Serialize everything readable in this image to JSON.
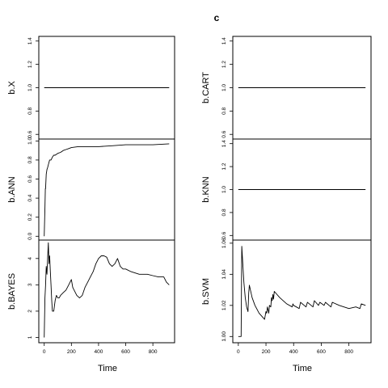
{
  "figure": {
    "title": "c"
  },
  "chart_data": [
    {
      "type": "line",
      "ylabel": "b.X",
      "xlabel": "",
      "xlim": [
        -40,
        960
      ],
      "ylim": [
        0.56,
        1.44
      ],
      "yticks": [
        0.6,
        0.8,
        1.0,
        1.2,
        1.4
      ],
      "ytick_labels": [
        "0.6",
        "0.8",
        "1.0",
        "1.2",
        "1.4"
      ],
      "xticks": [],
      "xtick_labels": [],
      "x": [
        0,
        920
      ],
      "y": [
        1.0,
        1.0
      ]
    },
    {
      "type": "line",
      "ylabel": "b.ANN",
      "xlabel": "",
      "xlim": [
        -40,
        960
      ],
      "ylim": [
        -0.04,
        1.02
      ],
      "yticks": [
        0.0,
        0.2,
        0.4,
        0.6,
        0.8,
        1.0
      ],
      "ytick_labels": [
        "0.0",
        "0.2",
        "0.4",
        "0.6",
        "0.8",
        "1.0"
      ],
      "xticks": [],
      "xtick_labels": [],
      "x": [
        0,
        5,
        8,
        10,
        15,
        20,
        25,
        30,
        40,
        50,
        60,
        70,
        80,
        100,
        120,
        140,
        160,
        180,
        200,
        250,
        300,
        400,
        500,
        600,
        700,
        800,
        920
      ],
      "y": [
        0.0,
        0.3,
        0.5,
        0.5,
        0.65,
        0.7,
        0.72,
        0.75,
        0.8,
        0.8,
        0.83,
        0.85,
        0.85,
        0.87,
        0.88,
        0.9,
        0.91,
        0.92,
        0.93,
        0.94,
        0.94,
        0.94,
        0.95,
        0.96,
        0.96,
        0.96,
        0.97
      ]
    },
    {
      "type": "line",
      "ylabel": "b.BAYES",
      "xlabel": "Time",
      "xlim": [
        -40,
        960
      ],
      "ylim": [
        0.8,
        4.7
      ],
      "yticks": [
        1,
        2,
        3,
        4
      ],
      "ytick_labels": [
        "1",
        "2",
        "3",
        "4"
      ],
      "xticks": [
        0,
        200,
        400,
        600,
        800
      ],
      "xtick_labels": [
        "0",
        "200",
        "400",
        "600",
        "800"
      ],
      "x": [
        0,
        5,
        10,
        15,
        20,
        25,
        30,
        35,
        40,
        45,
        50,
        55,
        60,
        70,
        80,
        90,
        100,
        110,
        120,
        140,
        160,
        180,
        200,
        210,
        220,
        240,
        260,
        280,
        300,
        320,
        340,
        360,
        380,
        400,
        420,
        440,
        460,
        480,
        500,
        520,
        540,
        560,
        580,
        600,
        640,
        700,
        760,
        800,
        840,
        880,
        900,
        920
      ],
      "y": [
        1.0,
        2.5,
        3.0,
        3.7,
        3.4,
        4.0,
        4.6,
        3.8,
        4.1,
        3.5,
        3.0,
        2.4,
        2.0,
        2.0,
        2.4,
        2.6,
        2.5,
        2.5,
        2.6,
        2.7,
        2.8,
        3.0,
        3.2,
        2.9,
        2.8,
        2.6,
        2.5,
        2.6,
        2.9,
        3.1,
        3.3,
        3.5,
        3.8,
        4.0,
        4.1,
        4.1,
        4.05,
        3.8,
        3.7,
        3.8,
        4.0,
        3.7,
        3.6,
        3.6,
        3.5,
        3.4,
        3.4,
        3.35,
        3.3,
        3.3,
        3.1,
        3.0
      ]
    },
    {
      "type": "line",
      "ylabel": "b.CART",
      "xlabel": "",
      "xlim": [
        -40,
        960
      ],
      "ylim": [
        0.56,
        1.44
      ],
      "yticks": [
        0.6,
        0.8,
        1.0,
        1.2,
        1.4
      ],
      "ytick_labels": [
        "0.6",
        "0.8",
        "1.0",
        "1.2",
        "1.4"
      ],
      "xticks": [],
      "xtick_labels": [],
      "x": [
        0,
        920
      ],
      "y": [
        1.0,
        1.0
      ]
    },
    {
      "type": "line",
      "ylabel": "b.KNN",
      "xlabel": "",
      "xlim": [
        -40,
        960
      ],
      "ylim": [
        0.56,
        1.44
      ],
      "yticks": [
        0.6,
        0.8,
        1.0,
        1.2,
        1.4
      ],
      "ytick_labels": [
        "0.6",
        "0.8",
        "1.0",
        "1.2",
        "1.4"
      ],
      "xticks": [],
      "xtick_labels": [],
      "x": [
        0,
        920
      ],
      "y": [
        1.0,
        1.0
      ]
    },
    {
      "type": "line",
      "ylabel": "b.SVM",
      "xlabel": "Time",
      "xlim": [
        -40,
        960
      ],
      "ylim": [
        0.996,
        1.062
      ],
      "yticks": [
        1.0,
        1.02,
        1.04,
        1.06
      ],
      "ytick_labels": [
        "1.00",
        "1.02",
        "1.04",
        "1.06"
      ],
      "xticks": [
        0,
        200,
        400,
        600,
        800
      ],
      "xtick_labels": [
        "0",
        "200",
        "400",
        "600",
        "800"
      ],
      "x": [
        0,
        20,
        25,
        30,
        40,
        50,
        60,
        70,
        75,
        80,
        100,
        120,
        150,
        190,
        200,
        205,
        210,
        220,
        225,
        235,
        240,
        245,
        250,
        255,
        260,
        300,
        350,
        390,
        395,
        400,
        440,
        450,
        490,
        500,
        540,
        550,
        580,
        590,
        620,
        630,
        670,
        680,
        730,
        800,
        850,
        880,
        890,
        920
      ],
      "y": [
        1.0,
        1.0,
        1.058,
        1.05,
        1.035,
        1.025,
        1.019,
        1.016,
        1.028,
        1.033,
        1.025,
        1.02,
        1.015,
        1.011,
        1.016,
        1.015,
        1.019,
        1.015,
        1.02,
        1.019,
        1.025,
        1.023,
        1.027,
        1.024,
        1.029,
        1.025,
        1.021,
        1.019,
        1.021,
        1.02,
        1.018,
        1.022,
        1.019,
        1.022,
        1.019,
        1.023,
        1.02,
        1.022,
        1.02,
        1.022,
        1.019,
        1.022,
        1.02,
        1.018,
        1.019,
        1.018,
        1.021,
        1.02
      ]
    }
  ]
}
